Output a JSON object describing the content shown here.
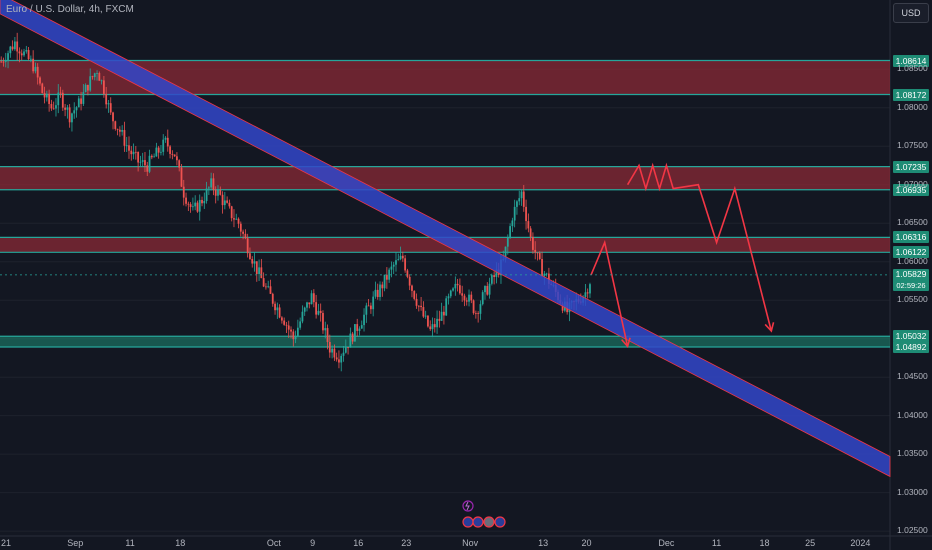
{
  "header": {
    "title": "Euro / U.S. Dollar, 4h, FXCM",
    "currency": "USD"
  },
  "colors": {
    "background": "#131722",
    "resistance_zone": "#8a2a35",
    "support_zone": "#1e8c75",
    "trend_channel": "#3347c9",
    "bull_candle": "#26a69a",
    "bear_candle": "#ef5350",
    "projection": "#f23645"
  },
  "chart_data": {
    "type": "candlestick",
    "symbol": "EURUSD",
    "timeframe": "4h",
    "ylim": [
      1.0245,
      1.094
    ],
    "y_ticks": [
      "1.08500",
      "1.08000",
      "1.07500",
      "1.07000",
      "1.06500",
      "1.06000",
      "1.05500",
      "1.04500",
      "1.04000",
      "1.03500",
      "1.03000",
      "1.02500"
    ],
    "x_ticks": [
      "21",
      "Sep",
      "11",
      "18",
      "Oct",
      "9",
      "16",
      "23",
      "Nov",
      "13",
      "20",
      "Dec",
      "11",
      "18",
      "25",
      "2024"
    ],
    "price_levels": [
      "1.08614",
      "1.08172",
      "1.07235",
      "1.06935",
      "1.06316",
      "1.06122",
      "1.05032",
      "1.04892"
    ],
    "current_price": {
      "price": "1.05829",
      "countdown": "02:59:26"
    },
    "zones": [
      {
        "kind": "resistance",
        "top": 1.08614,
        "bottom": 1.08172
      },
      {
        "kind": "resistance",
        "top": 1.07235,
        "bottom": 1.06935
      },
      {
        "kind": "resistance",
        "top": 1.06316,
        "bottom": 1.06122
      },
      {
        "kind": "support",
        "top": 1.05032,
        "bottom": 1.04892
      }
    ],
    "trend_channel": {
      "start_index": 0,
      "start_price": 1.0935,
      "end_index": 390,
      "end_price": 1.0334,
      "width": 0.0013
    },
    "series": [
      {
        "key": "close_path",
        "points": [
          [
            0,
            1.086
          ],
          [
            6,
            1.0885
          ],
          [
            10,
            1.087
          ],
          [
            14,
            1.0855
          ],
          [
            18,
            1.082
          ],
          [
            22,
            1.08
          ],
          [
            26,
            1.0815
          ],
          [
            30,
            1.079
          ],
          [
            34,
            1.0805
          ],
          [
            38,
            1.083
          ],
          [
            42,
            1.085
          ],
          [
            45,
            1.0825
          ],
          [
            48,
            1.079
          ],
          [
            52,
            1.077
          ],
          [
            56,
            1.0745
          ],
          [
            60,
            1.073
          ],
          [
            64,
            1.0725
          ],
          [
            68,
            1.074
          ],
          [
            72,
            1.0755
          ],
          [
            76,
            1.074
          ],
          [
            80,
            1.069
          ],
          [
            84,
            1.0665
          ],
          [
            88,
            1.068
          ],
          [
            92,
            1.07
          ],
          [
            96,
            1.0685
          ],
          [
            100,
            1.0665
          ],
          [
            104,
            1.065
          ],
          [
            108,
            1.062
          ],
          [
            112,
            1.059
          ],
          [
            116,
            1.0565
          ],
          [
            120,
            1.0545
          ],
          [
            124,
            1.0525
          ],
          [
            128,
            1.05
          ],
          [
            132,
            1.053
          ],
          [
            136,
            1.0555
          ],
          [
            140,
            1.0525
          ],
          [
            144,
            1.0488
          ],
          [
            148,
            1.0478
          ],
          [
            152,
            1.0495
          ],
          [
            156,
            1.0515
          ],
          [
            160,
            1.0535
          ],
          [
            164,
            1.0555
          ],
          [
            168,
            1.0575
          ],
          [
            172,
            1.0595
          ],
          [
            176,
            1.0605
          ],
          [
            180,
            1.0565
          ],
          [
            184,
            1.0535
          ],
          [
            188,
            1.051
          ],
          [
            192,
            1.0525
          ],
          [
            196,
            1.055
          ],
          [
            200,
            1.057
          ],
          [
            204,
            1.0555
          ],
          [
            208,
            1.0535
          ],
          [
            212,
            1.056
          ],
          [
            216,
            1.058
          ],
          [
            220,
            1.06
          ],
          [
            224,
            1.066
          ],
          [
            228,
            1.069
          ],
          [
            232,
            1.063
          ],
          [
            236,
            1.0595
          ],
          [
            240,
            1.0575
          ],
          [
            244,
            1.0555
          ],
          [
            248,
            1.0535
          ],
          [
            252,
            1.0548
          ],
          [
            256,
            1.056
          ],
          [
            259,
            1.0583
          ]
        ]
      }
    ],
    "projections": [
      [
        [
          259,
          1.0583
        ],
        [
          265,
          1.0625
        ],
        [
          275,
          1.049
        ]
      ],
      [
        [
          275,
          1.07
        ],
        [
          280,
          1.0725
        ],
        [
          283,
          1.0695
        ],
        [
          286,
          1.0725
        ],
        [
          289,
          1.0695
        ],
        [
          292,
          1.0725
        ],
        [
          295,
          1.0695
        ],
        [
          306,
          1.07
        ],
        [
          314,
          1.0625
        ],
        [
          322,
          1.0695
        ],
        [
          338,
          1.051
        ]
      ]
    ]
  }
}
